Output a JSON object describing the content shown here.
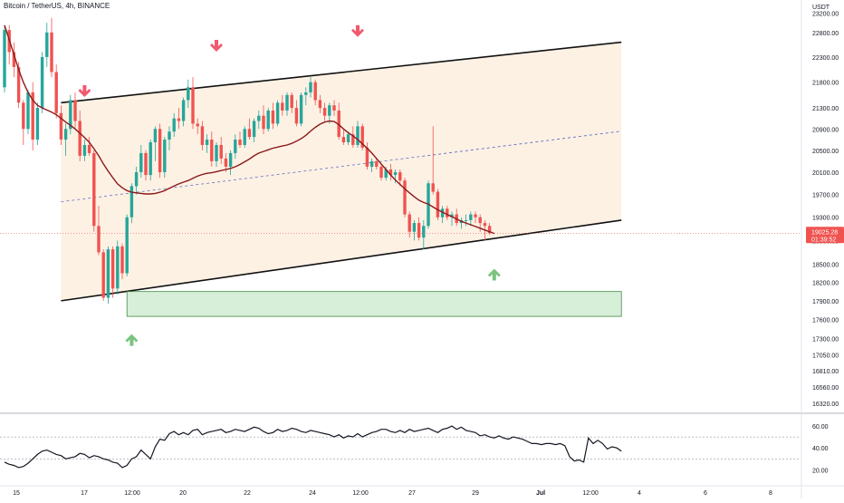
{
  "header": {
    "symbol_title": "Bitcoin / TetherUS, 4h, BINANCE",
    "currency": "USDT"
  },
  "price_tag": {
    "price": "19025.28",
    "countdown": "01:39:52"
  },
  "colors": {
    "up": "#26a69a",
    "down": "#ef5350",
    "ma": "#8b1a1a",
    "channel_fill": "#fdf1e4",
    "zone_fill": "#d7eed9",
    "zone_border": "#3e8e41",
    "arrow_down": "#f05a6e",
    "arrow_up": "#7bc47f",
    "midline": "#5c6bc0"
  },
  "chart_data": [
    {
      "type": "candlestick",
      "title": "Bitcoin / TetherUS, 4h, BINANCE",
      "y_axis": {
        "ticks": [
          23200,
          22800,
          22300,
          21800,
          21300,
          20900,
          20500,
          20100,
          19700,
          19300,
          18900,
          18500,
          18200,
          17900,
          17600,
          17300,
          17050,
          16810,
          16560,
          16320
        ],
        "tick_labels": [
          "23200.00",
          "22800.00",
          "22300.00",
          "21800.00",
          "21300.00",
          "20900.00",
          "20500.00",
          "20100.00",
          "19700.00",
          "19300.00",
          "18900.00",
          "18500.00",
          "18200.00",
          "17900.00",
          "17600.00",
          "17300.00",
          "17050.00",
          "16810.00",
          "16560.00",
          "16320.00"
        ],
        "scale": "log"
      },
      "x_axis": {
        "tick_labels": [
          "15",
          "17",
          "12:00",
          "20",
          "22",
          "24",
          "12:00",
          "27",
          "29",
          "Jul",
          "12:00",
          "4",
          "6",
          "8"
        ]
      },
      "series": [
        {
          "candles": [
            {
              "o": 21700,
              "h": 22950,
              "l": 21600,
              "c": 22850
            },
            {
              "o": 22850,
              "h": 22950,
              "l": 22150,
              "c": 22400
            },
            {
              "o": 22400,
              "h": 22600,
              "l": 21900,
              "c": 22100
            },
            {
              "o": 22100,
              "h": 22200,
              "l": 21300,
              "c": 21400
            },
            {
              "o": 21400,
              "h": 21450,
              "l": 20600,
              "c": 20900
            },
            {
              "o": 20900,
              "h": 21650,
              "l": 20800,
              "c": 21600
            },
            {
              "o": 21600,
              "h": 21800,
              "l": 20500,
              "c": 20700
            },
            {
              "o": 20700,
              "h": 21400,
              "l": 20600,
              "c": 21300
            },
            {
              "o": 21300,
              "h": 22400,
              "l": 21200,
              "c": 22300
            },
            {
              "o": 22300,
              "h": 23000,
              "l": 22100,
              "c": 22800
            },
            {
              "o": 22800,
              "h": 23100,
              "l": 21900,
              "c": 22000
            },
            {
              "o": 22000,
              "h": 22150,
              "l": 21100,
              "c": 21200
            },
            {
              "o": 21200,
              "h": 21350,
              "l": 20600,
              "c": 20700
            },
            {
              "o": 20700,
              "h": 21000,
              "l": 20400,
              "c": 20900
            },
            {
              "o": 20900,
              "h": 21550,
              "l": 20800,
              "c": 21450
            },
            {
              "o": 21450,
              "h": 21600,
              "l": 20900,
              "c": 21050
            },
            {
              "o": 21050,
              "h": 21250,
              "l": 20300,
              "c": 20400
            },
            {
              "o": 20400,
              "h": 20700,
              "l": 20300,
              "c": 20600
            },
            {
              "o": 20600,
              "h": 20750,
              "l": 20400,
              "c": 20450
            },
            {
              "o": 20450,
              "h": 20500,
              "l": 19050,
              "c": 19150
            },
            {
              "o": 19150,
              "h": 19500,
              "l": 18650,
              "c": 18700
            },
            {
              "o": 18700,
              "h": 18750,
              "l": 17900,
              "c": 17950
            },
            {
              "o": 17950,
              "h": 18800,
              "l": 17850,
              "c": 18750
            },
            {
              "o": 18750,
              "h": 18800,
              "l": 17950,
              "c": 18100
            },
            {
              "o": 18100,
              "h": 18900,
              "l": 18000,
              "c": 18800
            },
            {
              "o": 18800,
              "h": 18850,
              "l": 18250,
              "c": 18350
            },
            {
              "o": 18350,
              "h": 19350,
              "l": 18300,
              "c": 19300
            },
            {
              "o": 19300,
              "h": 19900,
              "l": 19200,
              "c": 19850
            },
            {
              "o": 19850,
              "h": 20200,
              "l": 19700,
              "c": 20100
            },
            {
              "o": 20100,
              "h": 20600,
              "l": 20000,
              "c": 20450
            },
            {
              "o": 20450,
              "h": 20500,
              "l": 19950,
              "c": 20050
            },
            {
              "o": 20050,
              "h": 20700,
              "l": 19950,
              "c": 20650
            },
            {
              "o": 20650,
              "h": 20950,
              "l": 20300,
              "c": 20900
            },
            {
              "o": 20900,
              "h": 21000,
              "l": 20000,
              "c": 20100
            },
            {
              "o": 20100,
              "h": 20750,
              "l": 20000,
              "c": 20700
            },
            {
              "o": 20700,
              "h": 20950,
              "l": 20500,
              "c": 20850
            },
            {
              "o": 20850,
              "h": 21200,
              "l": 20750,
              "c": 21100
            },
            {
              "o": 21100,
              "h": 21300,
              "l": 20900,
              "c": 21050
            },
            {
              "o": 21050,
              "h": 21500,
              "l": 20950,
              "c": 21450
            },
            {
              "o": 21450,
              "h": 21850,
              "l": 21300,
              "c": 21700
            },
            {
              "o": 21700,
              "h": 21900,
              "l": 20900,
              "c": 21000
            },
            {
              "o": 21000,
              "h": 21100,
              "l": 20800,
              "c": 20950
            },
            {
              "o": 20950,
              "h": 21050,
              "l": 20500,
              "c": 20600
            },
            {
              "o": 20600,
              "h": 20800,
              "l": 20450,
              "c": 20700
            },
            {
              "o": 20700,
              "h": 20850,
              "l": 20200,
              "c": 20300
            },
            {
              "o": 20300,
              "h": 20650,
              "l": 20200,
              "c": 20600
            },
            {
              "o": 20600,
              "h": 20750,
              "l": 20250,
              "c": 20350
            },
            {
              "o": 20350,
              "h": 20450,
              "l": 20100,
              "c": 20200
            },
            {
              "o": 20200,
              "h": 20500,
              "l": 20050,
              "c": 20450
            },
            {
              "o": 20450,
              "h": 20800,
              "l": 20350,
              "c": 20700
            },
            {
              "o": 20700,
              "h": 20850,
              "l": 20550,
              "c": 20600
            },
            {
              "o": 20600,
              "h": 20950,
              "l": 20550,
              "c": 20900
            },
            {
              "o": 20900,
              "h": 21100,
              "l": 20700,
              "c": 20750
            },
            {
              "o": 20750,
              "h": 21100,
              "l": 20650,
              "c": 21050
            },
            {
              "o": 21050,
              "h": 21250,
              "l": 20900,
              "c": 21150
            },
            {
              "o": 21150,
              "h": 21350,
              "l": 20800,
              "c": 20900
            },
            {
              "o": 20900,
              "h": 21300,
              "l": 20850,
              "c": 21250
            },
            {
              "o": 21250,
              "h": 21400,
              "l": 20900,
              "c": 21000
            },
            {
              "o": 21000,
              "h": 21450,
              "l": 20950,
              "c": 21400
            },
            {
              "o": 21400,
              "h": 21550,
              "l": 21150,
              "c": 21250
            },
            {
              "o": 21250,
              "h": 21600,
              "l": 21150,
              "c": 21550
            },
            {
              "o": 21550,
              "h": 21600,
              "l": 21200,
              "c": 21300
            },
            {
              "o": 21300,
              "h": 21450,
              "l": 20950,
              "c": 21000
            },
            {
              "o": 21000,
              "h": 21600,
              "l": 20950,
              "c": 21550
            },
            {
              "o": 21550,
              "h": 21700,
              "l": 21350,
              "c": 21600
            },
            {
              "o": 21600,
              "h": 21900,
              "l": 21500,
              "c": 21800
            },
            {
              "o": 21800,
              "h": 21850,
              "l": 21350,
              "c": 21450
            },
            {
              "o": 21450,
              "h": 21550,
              "l": 21200,
              "c": 21300
            },
            {
              "o": 21300,
              "h": 21400,
              "l": 21050,
              "c": 21150
            },
            {
              "o": 21150,
              "h": 21400,
              "l": 21000,
              "c": 21350
            },
            {
              "o": 21350,
              "h": 21450,
              "l": 21150,
              "c": 21250
            },
            {
              "o": 21250,
              "h": 21400,
              "l": 20700,
              "c": 20750
            },
            {
              "o": 20750,
              "h": 20900,
              "l": 20600,
              "c": 20650
            },
            {
              "o": 20650,
              "h": 20850,
              "l": 20600,
              "c": 20800
            },
            {
              "o": 20800,
              "h": 20950,
              "l": 20550,
              "c": 20600
            },
            {
              "o": 20600,
              "h": 21050,
              "l": 20550,
              "c": 20950
            },
            {
              "o": 20950,
              "h": 21000,
              "l": 20500,
              "c": 20550
            },
            {
              "o": 20550,
              "h": 20650,
              "l": 20150,
              "c": 20200
            },
            {
              "o": 20200,
              "h": 20350,
              "l": 20100,
              "c": 20300
            },
            {
              "o": 20300,
              "h": 20350,
              "l": 20150,
              "c": 20200
            },
            {
              "o": 20200,
              "h": 20250,
              "l": 19950,
              "c": 20000
            },
            {
              "o": 20000,
              "h": 20200,
              "l": 19950,
              "c": 20150
            },
            {
              "o": 20150,
              "h": 20250,
              "l": 19950,
              "c": 20050
            },
            {
              "o": 20050,
              "h": 20150,
              "l": 19900,
              "c": 20100
            },
            {
              "o": 20100,
              "h": 20150,
              "l": 19850,
              "c": 19950
            },
            {
              "o": 19950,
              "h": 20000,
              "l": 19300,
              "c": 19350
            },
            {
              "o": 19350,
              "h": 19400,
              "l": 18950,
              "c": 19050
            },
            {
              "o": 19050,
              "h": 19250,
              "l": 18900,
              "c": 19200
            },
            {
              "o": 19200,
              "h": 19300,
              "l": 18900,
              "c": 18950
            },
            {
              "o": 18950,
              "h": 19250,
              "l": 18750,
              "c": 19150
            },
            {
              "o": 19150,
              "h": 19950,
              "l": 19100,
              "c": 19900
            },
            {
              "o": 19900,
              "h": 20950,
              "l": 19700,
              "c": 19750
            },
            {
              "o": 19750,
              "h": 19800,
              "l": 19250,
              "c": 19300
            },
            {
              "o": 19300,
              "h": 19500,
              "l": 19200,
              "c": 19450
            },
            {
              "o": 19450,
              "h": 19500,
              "l": 19250,
              "c": 19300
            },
            {
              "o": 19300,
              "h": 19400,
              "l": 19150,
              "c": 19350
            },
            {
              "o": 19350,
              "h": 19450,
              "l": 19150,
              "c": 19200
            },
            {
              "o": 19200,
              "h": 19300,
              "l": 19100,
              "c": 19250
            },
            {
              "o": 19250,
              "h": 19350,
              "l": 19150,
              "c": 19250
            },
            {
              "o": 19250,
              "h": 19400,
              "l": 19150,
              "c": 19350
            },
            {
              "o": 19350,
              "h": 19400,
              "l": 19200,
              "c": 19300
            },
            {
              "o": 19300,
              "h": 19350,
              "l": 19050,
              "c": 19200
            },
            {
              "o": 19200,
              "h": 19250,
              "l": 18900,
              "c": 19150
            },
            {
              "o": 19150,
              "h": 19200,
              "l": 19000,
              "c": 19025
            }
          ]
        }
      ],
      "moving_average": [
        22950,
        22650,
        22350,
        22050,
        21800,
        21600,
        21450,
        21350,
        21300,
        21260,
        21220,
        21170,
        21100,
        21030,
        20970,
        20900,
        20820,
        20740,
        20650,
        20530,
        20400,
        20250,
        20120,
        20000,
        19890,
        19820,
        19770,
        19740,
        19730,
        19720,
        19710,
        19710,
        19720,
        19740,
        19770,
        19810,
        19850,
        19890,
        19920,
        19950,
        19990,
        20030,
        20060,
        20080,
        20090,
        20110,
        20130,
        20150,
        20170,
        20200,
        20240,
        20290,
        20340,
        20400,
        20450,
        20480,
        20510,
        20540,
        20560,
        20580,
        20600,
        20630,
        20670,
        20720,
        20780,
        20860,
        20930,
        20990,
        21030,
        21050,
        21040,
        20980,
        20900,
        20830,
        20770,
        20700,
        20620,
        20540,
        20450,
        20350,
        20250,
        20150,
        20050,
        19960,
        19880,
        19800,
        19730,
        19660,
        19600,
        19560,
        19530,
        19480,
        19430,
        19390,
        19350,
        19310,
        19270,
        19230,
        19200,
        19170,
        19140,
        19110,
        19080,
        19050,
        19020
      ],
      "channel": {
        "upper": {
          "start_index": 12,
          "start_price": 21400,
          "end_index": 131,
          "end_price": 22600
        },
        "lower": {
          "start_index": 12,
          "start_price": 17900,
          "end_index": 131,
          "end_price": 19250
        }
      },
      "zone": {
        "start_index": 26,
        "end_index": 131,
        "top": 18050,
        "bottom": 17650
      },
      "arrows_down": [
        {
          "index": 17,
          "price": 21600
        },
        {
          "index": 45,
          "price": 22500
        },
        {
          "index": 75,
          "price": 22800
        }
      ],
      "arrows_up": [
        {
          "index": 27,
          "price": 17300
        },
        {
          "index": 104,
          "price": 18350
        }
      ]
    },
    {
      "type": "line",
      "y_axis": {
        "ticks": [
          60,
          40,
          20
        ],
        "tick_labels": [
          "60.00",
          "40.00",
          "20.00"
        ]
      },
      "levels": [
        50,
        30
      ],
      "values": [
        27,
        25,
        24,
        22,
        23,
        26,
        30,
        34,
        37,
        38,
        36,
        34,
        33,
        30,
        31,
        32,
        35,
        34,
        31,
        33,
        32,
        30,
        29,
        27,
        26,
        22,
        24,
        30,
        32,
        38,
        34,
        30,
        41,
        48,
        47,
        53,
        55,
        52,
        54,
        52,
        56,
        57,
        52,
        54,
        55,
        56,
        57,
        54,
        55,
        57,
        56,
        55,
        57,
        59,
        58,
        55,
        53,
        54,
        57,
        55,
        56,
        58,
        57,
        55,
        54,
        56,
        55,
        54,
        53,
        52,
        50,
        52,
        49,
        51,
        50,
        53,
        50,
        52,
        54,
        55,
        57,
        57,
        55,
        54,
        56,
        54,
        57,
        55,
        56,
        57,
        58,
        56,
        54,
        57,
        58,
        60,
        57,
        59,
        56,
        55,
        54,
        51,
        52,
        50,
        49,
        51,
        49,
        48,
        50,
        49,
        48,
        46,
        44,
        44,
        43,
        44,
        44,
        43,
        44,
        42,
        32,
        28,
        29,
        27,
        49,
        44,
        47,
        44,
        39,
        41,
        40,
        37
      ],
      "points_count_note": ""
    }
  ]
}
